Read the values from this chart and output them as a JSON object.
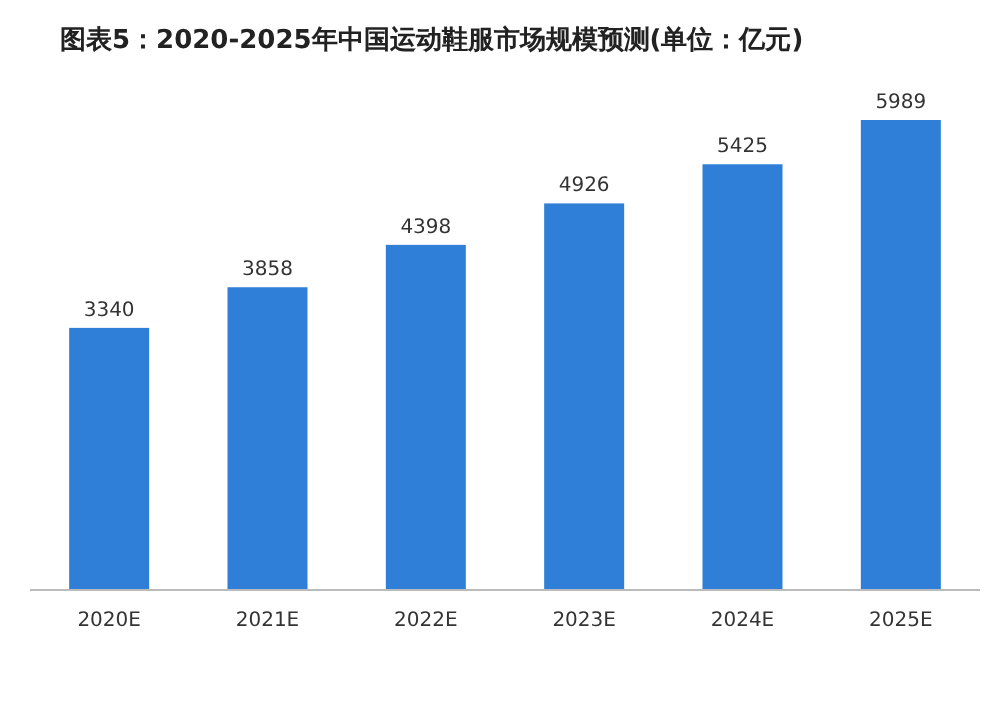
{
  "chart_data": {
    "type": "bar",
    "title": "图表5：2020-2025年中国运动鞋服市场规模预测(单位：亿元)",
    "categories": [
      "2020E",
      "2021E",
      "2022E",
      "2023E",
      "2024E",
      "2025E"
    ],
    "values": [
      3340,
      3858,
      4398,
      4926,
      5425,
      5989
    ],
    "color": "#2f7fd8",
    "data_labels": true
  }
}
